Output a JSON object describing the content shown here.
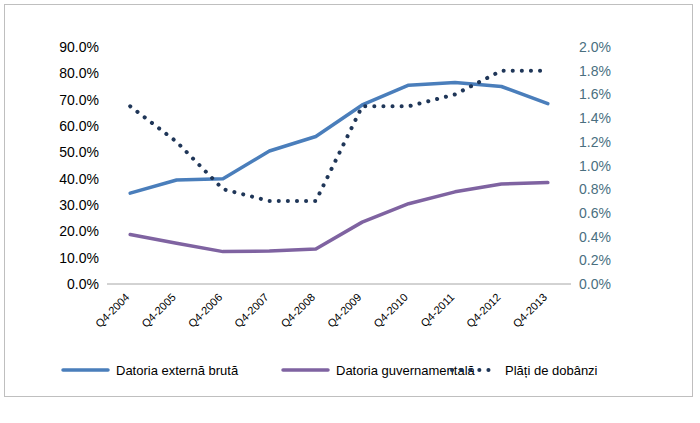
{
  "chart_data": {
    "type": "line",
    "categories": [
      "Q4-2004",
      "Q4-2005",
      "Q4-2006",
      "Q4-2007",
      "Q4-2008",
      "Q4-2009",
      "Q4-2010",
      "Q4-2011",
      "Q4-2012",
      "Q4-2013"
    ],
    "series": [
      {
        "name": "Datoria externă brută",
        "color": "#4a7ebb",
        "line_style": "solid",
        "values": [
          34.5,
          39.5,
          40.0,
          50.5,
          56.0,
          68.0,
          75.5,
          76.5,
          75.0,
          68.5
        ]
      },
      {
        "name": "Datoria guvernamentală",
        "color": "#7f63a1",
        "line_style": "solid",
        "values": [
          18.8,
          15.5,
          12.3,
          12.5,
          13.3,
          23.5,
          30.5,
          35.0,
          38.0,
          38.5
        ]
      },
      {
        "name": "Plăți de dobânzi",
        "color": "#1f3658",
        "line_style": "dotted",
        "axis": "y2",
        "values": [
          1.5,
          1.2,
          0.8,
          0.7,
          0.7,
          1.5,
          1.5,
          1.6,
          1.8,
          1.8
        ]
      }
    ],
    "ylim": [
      0,
      90
    ],
    "yticks": [
      {
        "value": 0,
        "label": "0.0%"
      },
      {
        "value": 10,
        "label": "10.0%"
      },
      {
        "value": 20,
        "label": "20.0%"
      },
      {
        "value": 30,
        "label": "30.0%"
      },
      {
        "value": 40,
        "label": "40.0%"
      },
      {
        "value": 50,
        "label": "50.0%"
      },
      {
        "value": 60,
        "label": "60.0%"
      },
      {
        "value": 70,
        "label": "70.0%"
      },
      {
        "value": 80,
        "label": "80.0%"
      },
      {
        "value": 90,
        "label": "90.0%"
      }
    ],
    "y2lim": [
      0,
      2.0
    ],
    "y2ticks": [
      {
        "value": 0,
        "label": "0.0%"
      },
      {
        "value": 0.2,
        "label": "0.2%"
      },
      {
        "value": 0.4,
        "label": "0.4%"
      },
      {
        "value": 0.6,
        "label": "0.6%"
      },
      {
        "value": 0.8,
        "label": "0.8%"
      },
      {
        "value": 1.0,
        "label": "1.0%"
      },
      {
        "value": 1.2,
        "label": "1.2%"
      },
      {
        "value": 1.4,
        "label": "1.4%"
      },
      {
        "value": 1.6,
        "label": "1.6%"
      },
      {
        "value": 1.8,
        "label": "1.8%"
      },
      {
        "value": 2.0,
        "label": "2.0%"
      }
    ],
    "grid": false,
    "legend": "bottom"
  }
}
